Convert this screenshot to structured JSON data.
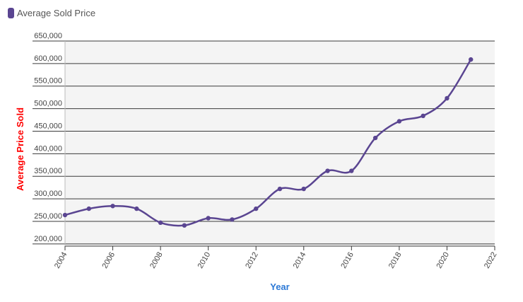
{
  "legend": {
    "label": "Average Sold Price",
    "color": "#5a4591"
  },
  "chart_data": {
    "type": "line",
    "title": "",
    "xlabel": "Year",
    "ylabel": "Average Price Sold",
    "xlim": [
      2004,
      2022
    ],
    "ylim": [
      195000,
      650000
    ],
    "x_ticks": [
      2004,
      2006,
      2008,
      2010,
      2012,
      2014,
      2016,
      2018,
      2020,
      2022
    ],
    "x_tick_labels": [
      "2004",
      "2006",
      "2008",
      "2010",
      "2012",
      "2014",
      "2016",
      "2018",
      "2020",
      "2022"
    ],
    "y_ticks": [
      200000,
      250000,
      300000,
      350000,
      400000,
      450000,
      500000,
      550000,
      600000,
      650000
    ],
    "y_tick_labels": [
      "200,000",
      "250,000",
      "300,000",
      "350,000",
      "400,000",
      "450,000",
      "500,000",
      "550,000",
      "600,000",
      "650,000"
    ],
    "grid": "horizontal",
    "legend_position": "top-left",
    "series": [
      {
        "name": "Average Sold Price",
        "color": "#5a4591",
        "x": [
          2004,
          2005,
          2006,
          2007,
          2008,
          2009,
          2010,
          2011,
          2012,
          2013,
          2014,
          2015,
          2016,
          2017,
          2018,
          2019,
          2020,
          2021
        ],
        "values": [
          264000,
          278000,
          284000,
          278000,
          247000,
          241000,
          257000,
          254000,
          278000,
          322000,
          322000,
          362000,
          362000,
          435000,
          472000,
          484000,
          523000,
          609000
        ]
      }
    ]
  }
}
